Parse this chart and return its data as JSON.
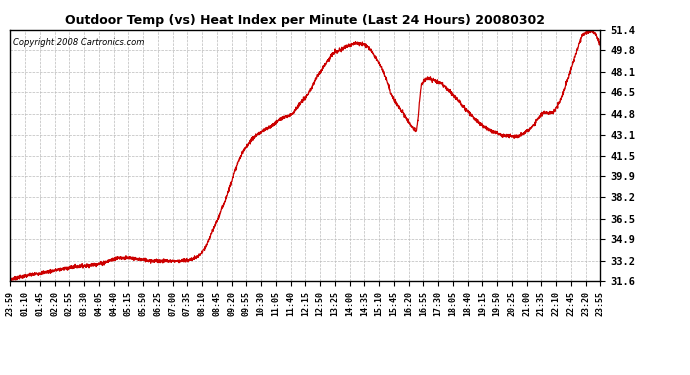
{
  "title": "Outdoor Temp (vs) Heat Index per Minute (Last 24 Hours) 20080302",
  "copyright": "Copyright 2008 Cartronics.com",
  "line_color": "#cc0000",
  "bg_color": "#ffffff",
  "plot_bg_color": "#ffffff",
  "grid_color": "#bbbbbb",
  "yticks": [
    31.6,
    33.2,
    34.9,
    36.5,
    38.2,
    39.9,
    41.5,
    43.1,
    44.8,
    46.5,
    48.1,
    49.8,
    51.4
  ],
  "ylim": [
    31.6,
    51.4
  ],
  "xtick_labels": [
    "23:59",
    "01:10",
    "01:45",
    "02:20",
    "02:55",
    "03:30",
    "04:05",
    "04:40",
    "05:15",
    "05:50",
    "06:25",
    "07:00",
    "07:35",
    "08:10",
    "08:45",
    "09:20",
    "09:55",
    "10:30",
    "11:05",
    "11:40",
    "12:15",
    "12:50",
    "13:25",
    "14:00",
    "14:35",
    "15:10",
    "15:45",
    "16:20",
    "16:55",
    "17:30",
    "18:05",
    "18:40",
    "19:15",
    "19:50",
    "20:25",
    "21:00",
    "21:35",
    "22:10",
    "22:45",
    "23:20",
    "23:55"
  ],
  "waypoints_x": [
    0,
    50,
    100,
    150,
    220,
    270,
    310,
    360,
    400,
    430,
    455,
    475,
    490,
    510,
    530,
    545,
    560,
    580,
    600,
    620,
    635,
    648,
    660,
    672,
    685,
    700,
    715,
    730,
    745,
    760,
    775,
    790,
    808,
    820,
    835,
    850,
    865,
    878,
    890,
    905,
    918,
    930,
    945,
    960,
    975,
    990,
    1005,
    1020,
    1035,
    1050,
    1065,
    1080,
    1095,
    1110,
    1125,
    1140,
    1155,
    1170,
    1185,
    1200,
    1215,
    1230,
    1245,
    1260,
    1275,
    1290,
    1305,
    1320,
    1340,
    1360,
    1380,
    1400,
    1420,
    1440
  ],
  "waypoints_y": [
    31.75,
    32.1,
    32.4,
    32.7,
    33.0,
    33.45,
    33.35,
    33.2,
    33.2,
    33.25,
    33.5,
    34.2,
    35.3,
    36.8,
    38.5,
    40.0,
    41.3,
    42.4,
    43.1,
    43.5,
    43.8,
    44.1,
    44.4,
    44.55,
    44.75,
    45.3,
    45.9,
    46.5,
    47.5,
    48.3,
    49.0,
    49.6,
    49.85,
    50.1,
    50.3,
    50.35,
    50.25,
    49.9,
    49.3,
    48.5,
    47.5,
    46.3,
    45.5,
    44.8,
    44.0,
    43.5,
    47.2,
    47.6,
    47.4,
    47.2,
    46.8,
    46.3,
    45.8,
    45.2,
    44.7,
    44.2,
    43.8,
    43.5,
    43.3,
    43.1,
    43.05,
    43.0,
    43.1,
    43.4,
    43.8,
    44.5,
    44.9,
    44.85,
    45.7,
    47.5,
    49.5,
    51.1,
    51.3,
    50.2
  ]
}
